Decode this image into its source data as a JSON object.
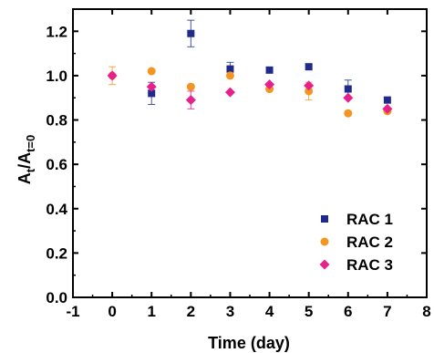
{
  "chart_data": {
    "type": "scatter",
    "xlabel": "Time (day)",
    "ylabel": {
      "main": "A",
      "sub_t": "t",
      "slash": "/A",
      "sub_t0": "t=0"
    },
    "xlim": [
      -1,
      8
    ],
    "ylim": [
      0.0,
      1.3
    ],
    "xticks": [
      -1,
      0,
      1,
      2,
      3,
      4,
      5,
      6,
      7,
      8
    ],
    "yticks": [
      0.0,
      0.2,
      0.4,
      0.6,
      0.8,
      1.0,
      1.2
    ],
    "ytick_labels": [
      "0.0",
      "0.2",
      "0.4",
      "0.6",
      "0.8",
      "1.0",
      "1.2"
    ],
    "grid": false,
    "legend_position": "bottom-right",
    "series": [
      {
        "name": "RAC 1",
        "marker": "square",
        "color": "#1f2a8a",
        "x": [
          1,
          2,
          3,
          4,
          5,
          6,
          7
        ],
        "y": [
          0.92,
          1.19,
          1.03,
          1.025,
          1.04,
          0.94,
          0.89
        ],
        "err": [
          0.05,
          0.06,
          0.03,
          0.0,
          0.0,
          0.04,
          0.0
        ]
      },
      {
        "name": "RAC 2",
        "marker": "circle",
        "color": "#f39520",
        "x": [
          0,
          1,
          2,
          3,
          4,
          5,
          6,
          7
        ],
        "y": [
          1.0,
          1.02,
          0.95,
          1.0,
          0.94,
          0.93,
          0.83,
          0.84
        ],
        "err": [
          0.04,
          0.0,
          0.0,
          0.0,
          0.0,
          0.04,
          0.0,
          0.0
        ]
      },
      {
        "name": "RAC 3",
        "marker": "diamond",
        "color": "#e8208c",
        "x": [
          0,
          1,
          2,
          3,
          4,
          5,
          6,
          7
        ],
        "y": [
          1.0,
          0.95,
          0.89,
          0.925,
          0.96,
          0.955,
          0.9,
          0.85
        ],
        "err": [
          0.0,
          0.0,
          0.04,
          0.0,
          0.0,
          0.0,
          0.0,
          0.0
        ]
      }
    ]
  }
}
